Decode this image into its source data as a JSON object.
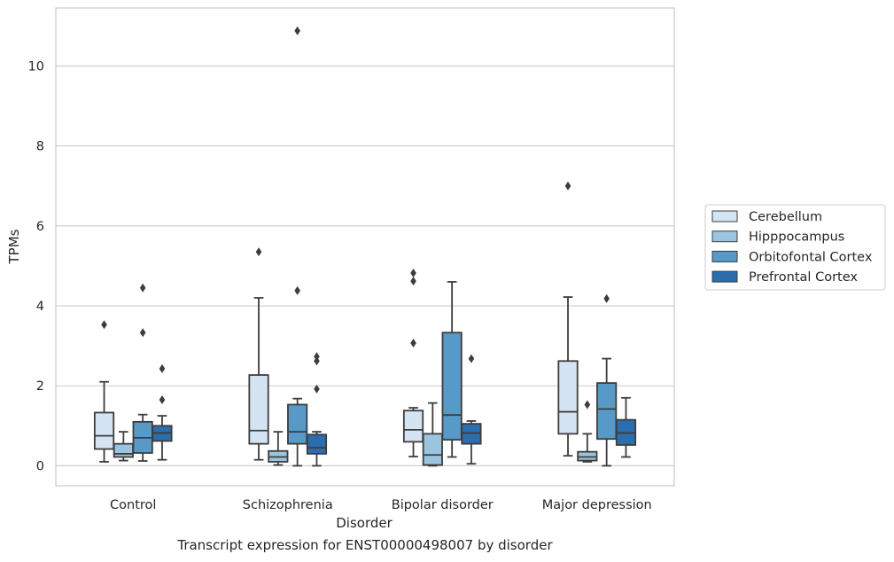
{
  "chart_data": {
    "type": "box",
    "title": "",
    "xlabel": "Disorder",
    "ylabel": "TPMs",
    "ylim": [
      -0.5,
      11.45
    ],
    "yticks": [
      0,
      2,
      4,
      6,
      8,
      10
    ],
    "grid": "horizontal",
    "legend_placement": "right",
    "categories": [
      "Control",
      "Schizophrenia",
      "Bipolar disorder",
      "Major depression"
    ],
    "series": [
      {
        "name": "Cerebellum",
        "color": "#d5e4f3",
        "boxes": [
          {
            "whisker_low": 0.1,
            "q1": 0.42,
            "median": 0.75,
            "q3": 1.33,
            "whisker_high": 2.1,
            "outliers": [
              3.53
            ]
          },
          {
            "whisker_low": 0.15,
            "q1": 0.55,
            "median": 0.88,
            "q3": 2.27,
            "whisker_high": 4.2,
            "outliers": [
              5.35
            ]
          },
          {
            "whisker_low": 0.23,
            "q1": 0.6,
            "median": 0.9,
            "q3": 1.38,
            "whisker_high": 1.45,
            "outliers": [
              4.82,
              4.62,
              3.07
            ]
          },
          {
            "whisker_low": 0.25,
            "q1": 0.8,
            "median": 1.35,
            "q3": 2.62,
            "whisker_high": 4.22,
            "outliers": [
              7.0
            ]
          }
        ]
      },
      {
        "name": "Hipppocampus",
        "color": "#9bc5df",
        "boxes": [
          {
            "whisker_low": 0.13,
            "q1": 0.22,
            "median": 0.3,
            "q3": 0.55,
            "whisker_high": 0.85,
            "outliers": []
          },
          {
            "whisker_low": 0.02,
            "q1": 0.1,
            "median": 0.22,
            "q3": 0.37,
            "whisker_high": 0.85,
            "outliers": []
          },
          {
            "whisker_low": 0.0,
            "q1": 0.02,
            "median": 0.27,
            "q3": 0.8,
            "whisker_high": 1.57,
            "outliers": []
          },
          {
            "whisker_low": 0.1,
            "q1": 0.13,
            "median": 0.22,
            "q3": 0.35,
            "whisker_high": 0.8,
            "outliers": [
              1.53
            ]
          }
        ]
      },
      {
        "name": "Orbitofontal Cortex",
        "color": "#5799c7",
        "boxes": [
          {
            "whisker_low": 0.12,
            "q1": 0.32,
            "median": 0.7,
            "q3": 1.1,
            "whisker_high": 1.28,
            "outliers": [
              4.45,
              3.33
            ]
          },
          {
            "whisker_low": 0.0,
            "q1": 0.55,
            "median": 0.85,
            "q3": 1.53,
            "whisker_high": 1.68,
            "outliers": [
              4.38,
              10.88
            ]
          },
          {
            "whisker_low": 0.22,
            "q1": 0.65,
            "median": 1.27,
            "q3": 3.33,
            "whisker_high": 4.6,
            "outliers": []
          },
          {
            "whisker_low": 0.0,
            "q1": 0.67,
            "median": 1.42,
            "q3": 2.07,
            "whisker_high": 2.68,
            "outliers": [
              4.18
            ]
          }
        ]
      },
      {
        "name": "Prefrontal Cortex",
        "color": "#2a6eae",
        "boxes": [
          {
            "whisker_low": 0.15,
            "q1": 0.62,
            "median": 0.82,
            "q3": 1.0,
            "whisker_high": 1.25,
            "outliers": [
              2.43,
              1.65
            ]
          },
          {
            "whisker_low": 0.0,
            "q1": 0.3,
            "median": 0.45,
            "q3": 0.78,
            "whisker_high": 0.85,
            "outliers": [
              2.73,
              2.62,
              1.92
            ]
          },
          {
            "whisker_low": 0.05,
            "q1": 0.55,
            "median": 0.82,
            "q3": 1.05,
            "whisker_high": 1.12,
            "outliers": [
              2.68
            ]
          },
          {
            "whisker_low": 0.22,
            "q1": 0.52,
            "median": 0.82,
            "q3": 1.15,
            "whisker_high": 1.7,
            "outliers": []
          }
        ]
      }
    ]
  },
  "caption": "Transcript expression for ENST00000498007 by disorder"
}
